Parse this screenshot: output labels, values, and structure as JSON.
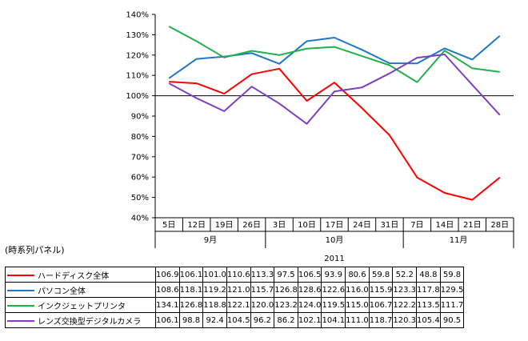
{
  "chart_data": {
    "type": "line",
    "panel_label": "(時系列パネル)",
    "year": "2011",
    "months": [
      "9月",
      "10月",
      "11月"
    ],
    "categories": [
      "5日",
      "12日",
      "19日",
      "26日",
      "3日",
      "10日",
      "17日",
      "24日",
      "31日",
      "7日",
      "14日",
      "21日",
      "28日"
    ],
    "month_spans": [
      4,
      5,
      4
    ],
    "y_ticks": [
      "40%",
      "50%",
      "60%",
      "70%",
      "80%",
      "90%",
      "100%",
      "110%",
      "120%",
      "130%",
      "140%"
    ],
    "ylim": [
      40,
      140
    ],
    "reference_line": 100,
    "series": [
      {
        "name": "ハードディスク全体",
        "color": "#ff0000",
        "values": [
          106.9,
          106.1,
          101.0,
          110.6,
          113.3,
          97.5,
          106.5,
          93.9,
          80.6,
          59.8,
          52.2,
          48.8,
          59.8
        ],
        "labels": [
          "106.9",
          "106.1",
          "101.0",
          "110.6",
          "113.3",
          "97.5",
          "106.5",
          "93.9",
          "80.6",
          "59.8",
          "52.2",
          "48.8",
          "59.8"
        ]
      },
      {
        "name": "パソコン全体",
        "color": "#1f77c8",
        "values": [
          108.6,
          118.1,
          119.2,
          121.0,
          115.7,
          126.8,
          128.6,
          122.6,
          116.0,
          115.9,
          123.3,
          117.8,
          129.5
        ],
        "labels": [
          "108.6",
          "118.1",
          "119.2",
          "121.0",
          "115.7",
          "126.8",
          "128.6",
          "122.6",
          "116.0",
          "115.9",
          "123.3",
          "117.8",
          "129.5"
        ]
      },
      {
        "name": "インクジェットプリンタ",
        "color": "#22b04b",
        "values": [
          134.1,
          126.8,
          118.8,
          122.1,
          120.0,
          123.2,
          124.0,
          119.5,
          115.0,
          106.7,
          122.2,
          113.5,
          111.7
        ],
        "labels": [
          "134.1",
          "126.8",
          "118.8",
          "122.1",
          "120.0",
          "123.2",
          "124.0",
          "119.5",
          "115.0",
          "106.7",
          "122.2",
          "113.5",
          "111.7"
        ]
      },
      {
        "name": "レンズ交換型デジタルカメラ",
        "color": "#7f3fbf",
        "values": [
          106.1,
          98.8,
          92.4,
          104.5,
          96.2,
          86.2,
          102.1,
          104.1,
          111.0,
          118.7,
          120.3,
          105.4,
          90.5
        ],
        "labels": [
          "106.1",
          "98.8",
          "92.4",
          "104.5",
          "96.2",
          "86.2",
          "102.1",
          "104.1",
          "111.0",
          "118.7",
          "120.3",
          "105.4",
          "90.5"
        ]
      }
    ]
  }
}
